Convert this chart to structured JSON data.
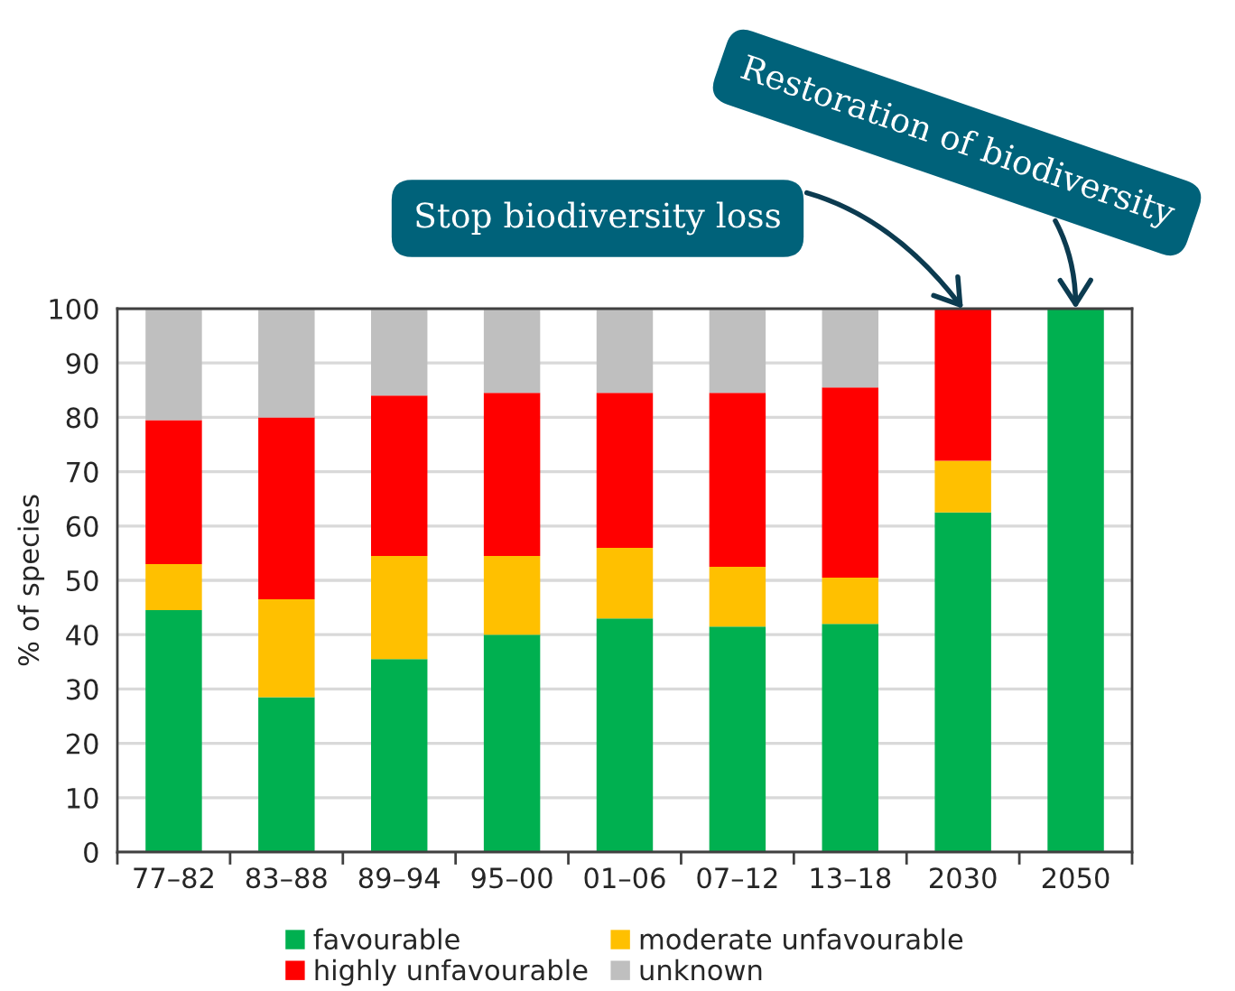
{
  "chart_data": {
    "type": "bar",
    "stacked": true,
    "ylabel": "% of species",
    "categories": [
      "77–82",
      "83–88",
      "89–94",
      "95–00",
      "01–06",
      "07–12",
      "13–18",
      "2030",
      "2050"
    ],
    "series": [
      {
        "name": "favourable",
        "color": "#00b050",
        "values": [
          44.5,
          28.5,
          35.5,
          40,
          43,
          41.5,
          42,
          62.5,
          100
        ]
      },
      {
        "name": "moderate unfavourable",
        "color": "#ffc000",
        "values": [
          8.5,
          18,
          19,
          14.5,
          13,
          11,
          8.5,
          9.5,
          null
        ]
      },
      {
        "name": "highly unfavourable",
        "color": "#ff0000",
        "values": [
          26.5,
          33.5,
          29.5,
          30,
          28.5,
          32,
          35,
          28,
          null
        ]
      },
      {
        "name": "unknown",
        "color": "#bfbfbf",
        "values": [
          20.5,
          20,
          16,
          15.5,
          15.5,
          15.5,
          14.5,
          null,
          null
        ]
      }
    ],
    "ylim": [
      0,
      100
    ],
    "yticks": [
      0,
      10,
      20,
      30,
      40,
      50,
      60,
      70,
      80,
      90,
      100
    ],
    "grid": "y",
    "legend": "bottom",
    "annotations": [
      {
        "text": "Stop biodiversity loss",
        "x": "2030",
        "y": 100
      },
      {
        "text": "Restoration of biodiversity",
        "x": "2050",
        "y": 100
      }
    ]
  }
}
